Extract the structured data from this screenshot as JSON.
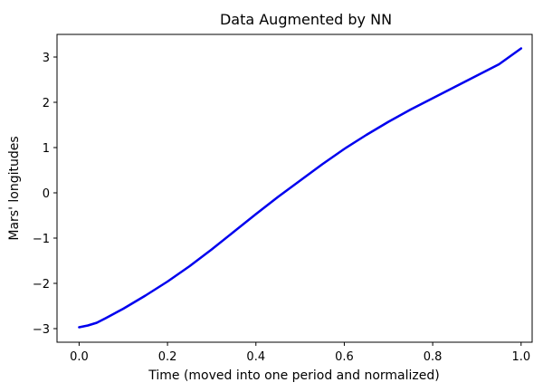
{
  "chart_data": {
    "type": "line",
    "title": "Data Augmented by NN",
    "xlabel": "Time (moved into one period and normalized)",
    "ylabel": "Mars' longitudes",
    "xlim": [
      -0.05,
      1.025
    ],
    "ylim": [
      -3.3,
      3.5
    ],
    "xticks": [
      0.0,
      0.2,
      0.4,
      0.6,
      0.8,
      1.0
    ],
    "xtick_labels": [
      "0.0",
      "0.2",
      "0.4",
      "0.6",
      "0.8",
      "1.0"
    ],
    "yticks": [
      -3,
      -2,
      -1,
      0,
      1,
      2,
      3
    ],
    "ytick_labels": [
      "−3",
      "−2",
      "−1",
      "0",
      "1",
      "2",
      "3"
    ],
    "grid": false,
    "series": [
      {
        "color": "#0000ee",
        "x": [
          0.0,
          0.02,
          0.04,
          0.06,
          0.1,
          0.15,
          0.2,
          0.25,
          0.3,
          0.35,
          0.4,
          0.45,
          0.5,
          0.55,
          0.6,
          0.65,
          0.7,
          0.75,
          0.8,
          0.85,
          0.9,
          0.95,
          1.0
        ],
        "y": [
          -2.97,
          -2.93,
          -2.87,
          -2.77,
          -2.56,
          -2.27,
          -1.96,
          -1.62,
          -1.25,
          -0.86,
          -0.47,
          -0.09,
          0.27,
          0.63,
          0.97,
          1.28,
          1.57,
          1.84,
          2.09,
          2.34,
          2.59,
          2.84,
          3.19
        ]
      }
    ]
  }
}
